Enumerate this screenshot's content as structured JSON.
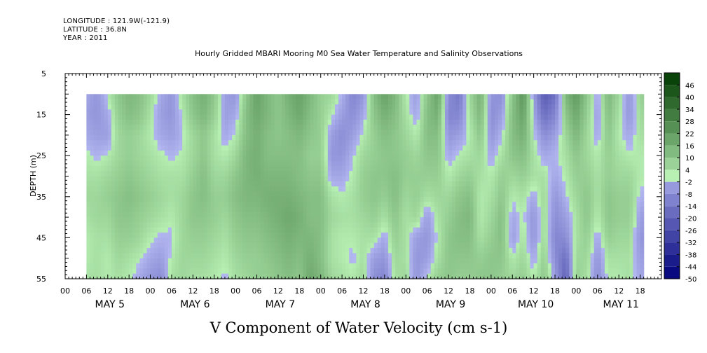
{
  "header": {
    "longitude_line": "LONGITUDE : 121.9W(-121.9)",
    "latitude_line": "LATITUDE : 36.8N",
    "year_line": "YEAR : 2011"
  },
  "chart_data": {
    "type": "heatmap",
    "title": "Hourly Gridded MBARI Mooring M0 Sea Water Temperature and Salinity Observations",
    "xlabel": "V Component of Water Velocity (cm s-1)",
    "ylabel": "DEPTH (m)",
    "ylim": [
      5,
      55
    ],
    "y_inverted": true,
    "y_ticks": [
      5,
      15,
      25,
      35,
      45,
      55
    ],
    "data_depth_range": [
      10,
      55
    ],
    "x_range_hours": [
      -12,
      156
    ],
    "data_time_range_hours": [
      -6,
      151
    ],
    "x_hour_ticks": [
      "00",
      "06",
      "12",
      "18",
      "00",
      "06",
      "12",
      "18",
      "00",
      "06",
      "12",
      "18",
      "00",
      "06",
      "12",
      "18",
      "00",
      "06",
      "12",
      "18",
      "00",
      "06",
      "12",
      "18",
      "00",
      "06",
      "12",
      "18"
    ],
    "x_hour_tick_positions": [
      -12,
      -6,
      0,
      6,
      12,
      18,
      24,
      30,
      36,
      42,
      48,
      54,
      60,
      66,
      72,
      78,
      84,
      90,
      96,
      102,
      108,
      114,
      120,
      126,
      132,
      138,
      144,
      150
    ],
    "day_labels": [
      "MAY  5",
      "MAY  6",
      "MAY  7",
      "MAY  8",
      "MAY  9",
      "MAY 10",
      "MAY 11"
    ],
    "day_label_positions": [
      0,
      24,
      48,
      72,
      96,
      120,
      144
    ],
    "colorbar": {
      "levels": [
        -50,
        -44,
        -38,
        -32,
        -26,
        -20,
        -14,
        -8,
        -2,
        4,
        10,
        16,
        22,
        28,
        34,
        40,
        46
      ],
      "tick_labels": [
        "-50",
        "-44",
        "-38",
        "-32",
        "-26",
        "-20",
        "-14",
        "-8",
        "-2",
        "4",
        "10",
        "16",
        "22",
        "28",
        "34",
        "40",
        "46"
      ],
      "range": [
        -50,
        52
      ],
      "low_color": "#00007a",
      "neutral_low": "#b4b8f0",
      "neutral_high": "#b8f0b4",
      "high_color": "#003a00"
    },
    "profiles": {
      "depths": [
        10,
        15,
        20,
        25,
        30,
        35,
        40,
        45,
        50,
        55
      ],
      "series": [
        {
          "hour": -6,
          "values": [
            -2,
            -4,
            -2,
            2,
            4,
            6,
            4,
            2,
            2,
            4
          ]
        },
        {
          "hour": -3,
          "values": [
            -6,
            -6,
            -4,
            0,
            4,
            6,
            6,
            4,
            4,
            4
          ]
        },
        {
          "hour": 0,
          "values": [
            2,
            -2,
            -4,
            2,
            6,
            8,
            6,
            4,
            2,
            2
          ]
        },
        {
          "hour": 3,
          "values": [
            10,
            8,
            6,
            6,
            8,
            10,
            10,
            8,
            6,
            4
          ]
        },
        {
          "hour": 6,
          "values": [
            14,
            12,
            8,
            8,
            10,
            12,
            10,
            8,
            4,
            2
          ]
        },
        {
          "hour": 9,
          "values": [
            12,
            10,
            6,
            6,
            8,
            10,
            8,
            6,
            2,
            -2
          ]
        },
        {
          "hour": 12,
          "values": [
            6,
            4,
            2,
            4,
            6,
            8,
            6,
            2,
            -2,
            -6
          ]
        },
        {
          "hour": 15,
          "values": [
            -2,
            -4,
            -2,
            2,
            4,
            6,
            4,
            0,
            -4,
            -8
          ]
        },
        {
          "hour": 18,
          "values": [
            -6,
            -6,
            -4,
            0,
            4,
            4,
            2,
            0,
            2,
            4
          ]
        },
        {
          "hour": 21,
          "values": [
            4,
            2,
            0,
            2,
            4,
            6,
            6,
            6,
            6,
            6
          ]
        },
        {
          "hour": 24,
          "values": [
            12,
            10,
            6,
            6,
            8,
            10,
            10,
            8,
            6,
            4
          ]
        },
        {
          "hour": 27,
          "values": [
            16,
            14,
            10,
            10,
            12,
            12,
            10,
            8,
            6,
            4
          ]
        },
        {
          "hour": 30,
          "values": [
            10,
            8,
            4,
            4,
            6,
            8,
            8,
            6,
            4,
            2
          ]
        },
        {
          "hour": 33,
          "values": [
            -4,
            -4,
            -2,
            2,
            6,
            8,
            6,
            4,
            2,
            0
          ]
        },
        {
          "hour": 36,
          "values": [
            -6,
            -2,
            2,
            6,
            10,
            12,
            10,
            8,
            6,
            4
          ]
        },
        {
          "hour": 39,
          "values": [
            10,
            12,
            12,
            14,
            14,
            14,
            12,
            10,
            8,
            6
          ]
        },
        {
          "hour": 42,
          "values": [
            20,
            18,
            16,
            16,
            16,
            14,
            12,
            10,
            8,
            8
          ]
        },
        {
          "hour": 45,
          "values": [
            14,
            14,
            12,
            12,
            14,
            16,
            14,
            12,
            10,
            8
          ]
        },
        {
          "hour": 48,
          "values": [
            10,
            10,
            10,
            12,
            14,
            16,
            16,
            14,
            12,
            10
          ]
        },
        {
          "hour": 51,
          "values": [
            16,
            14,
            12,
            12,
            14,
            16,
            18,
            16,
            14,
            12
          ]
        },
        {
          "hour": 54,
          "values": [
            20,
            18,
            14,
            12,
            12,
            14,
            16,
            14,
            12,
            10
          ]
        },
        {
          "hour": 57,
          "values": [
            14,
            12,
            10,
            8,
            10,
            12,
            12,
            14,
            16,
            18
          ]
        },
        {
          "hour": 60,
          "values": [
            8,
            8,
            8,
            8,
            10,
            12,
            12,
            12,
            12,
            14
          ]
        },
        {
          "hour": 63,
          "values": [
            6,
            2,
            -4,
            -6,
            -2,
            4,
            6,
            4,
            4,
            6
          ]
        },
        {
          "hour": 66,
          "values": [
            0,
            -4,
            -8,
            -6,
            -2,
            2,
            4,
            2,
            2,
            4
          ]
        },
        {
          "hour": 69,
          "values": [
            -10,
            -8,
            -4,
            0,
            2,
            4,
            4,
            2,
            0,
            2
          ]
        },
        {
          "hour": 72,
          "values": [
            -6,
            -2,
            2,
            6,
            8,
            8,
            6,
            4,
            4,
            6
          ]
        },
        {
          "hour": 75,
          "values": [
            12,
            10,
            8,
            8,
            10,
            10,
            8,
            4,
            -4,
            -8
          ]
        },
        {
          "hour": 78,
          "values": [
            20,
            16,
            12,
            10,
            10,
            8,
            4,
            -2,
            -6,
            -10
          ]
        },
        {
          "hour": 81,
          "values": [
            14,
            12,
            10,
            10,
            12,
            12,
            10,
            8,
            6,
            4
          ]
        },
        {
          "hour": 84,
          "values": [
            2,
            4,
            6,
            8,
            8,
            6,
            4,
            4,
            4,
            6
          ]
        },
        {
          "hour": 87,
          "values": [
            -4,
            -2,
            2,
            6,
            8,
            8,
            6,
            -4,
            -6,
            -6
          ]
        },
        {
          "hour": 90,
          "values": [
            10,
            12,
            12,
            10,
            8,
            4,
            -4,
            -6,
            -4,
            2
          ]
        },
        {
          "hour": 93,
          "values": [
            20,
            16,
            12,
            10,
            8,
            6,
            4,
            2,
            4,
            8
          ]
        },
        {
          "hour": 96,
          "values": [
            -8,
            -10,
            -6,
            -2,
            2,
            6,
            8,
            10,
            10,
            10
          ]
        },
        {
          "hour": 99,
          "values": [
            -14,
            -10,
            -4,
            2,
            6,
            10,
            12,
            12,
            10,
            8
          ]
        },
        {
          "hour": 102,
          "values": [
            6,
            4,
            2,
            4,
            8,
            12,
            14,
            12,
            10,
            8
          ]
        },
        {
          "hour": 105,
          "values": [
            16,
            14,
            10,
            6,
            4,
            2,
            2,
            4,
            8,
            10
          ]
        },
        {
          "hour": 108,
          "values": [
            -6,
            -8,
            -6,
            -2,
            2,
            4,
            6,
            8,
            10,
            10
          ]
        },
        {
          "hour": 111,
          "values": [
            -8,
            -4,
            0,
            4,
            8,
            10,
            12,
            12,
            10,
            8
          ]
        },
        {
          "hour": 114,
          "values": [
            10,
            12,
            12,
            10,
            6,
            2,
            -2,
            -4,
            2,
            6
          ]
        },
        {
          "hour": 117,
          "values": [
            24,
            20,
            16,
            12,
            8,
            4,
            2,
            4,
            6,
            8
          ]
        },
        {
          "hour": 120,
          "values": [
            -4,
            -2,
            2,
            4,
            4,
            -2,
            -6,
            -6,
            -2,
            2
          ]
        },
        {
          "hour": 123,
          "values": [
            -22,
            -16,
            -8,
            -2,
            4,
            6,
            6,
            6,
            8,
            10
          ]
        },
        {
          "hour": 126,
          "values": [
            -16,
            -10,
            -4,
            0,
            -2,
            -6,
            -8,
            -10,
            -8,
            -4
          ]
        },
        {
          "hour": 129,
          "values": [
            14,
            10,
            6,
            4,
            2,
            0,
            -4,
            -8,
            -16,
            -20
          ]
        },
        {
          "hour": 132,
          "values": [
            22,
            18,
            14,
            10,
            8,
            6,
            4,
            4,
            6,
            8
          ]
        },
        {
          "hour": 135,
          "values": [
            10,
            8,
            6,
            6,
            8,
            10,
            10,
            8,
            6,
            4
          ]
        },
        {
          "hour": 138,
          "values": [
            -2,
            -4,
            -2,
            2,
            4,
            4,
            2,
            -2,
            -6,
            -8
          ]
        },
        {
          "hour": 141,
          "values": [
            14,
            12,
            10,
            8,
            8,
            10,
            10,
            8,
            4,
            2
          ]
        },
        {
          "hour": 144,
          "values": [
            6,
            4,
            2,
            4,
            6,
            8,
            8,
            6,
            4,
            2
          ]
        },
        {
          "hour": 147,
          "values": [
            -6,
            -6,
            -2,
            2,
            6,
            8,
            8,
            6,
            4,
            4
          ]
        },
        {
          "hour": 150,
          "values": [
            8,
            6,
            4,
            2,
            2,
            0,
            -4,
            -6,
            -4,
            -2
          ]
        }
      ]
    }
  }
}
